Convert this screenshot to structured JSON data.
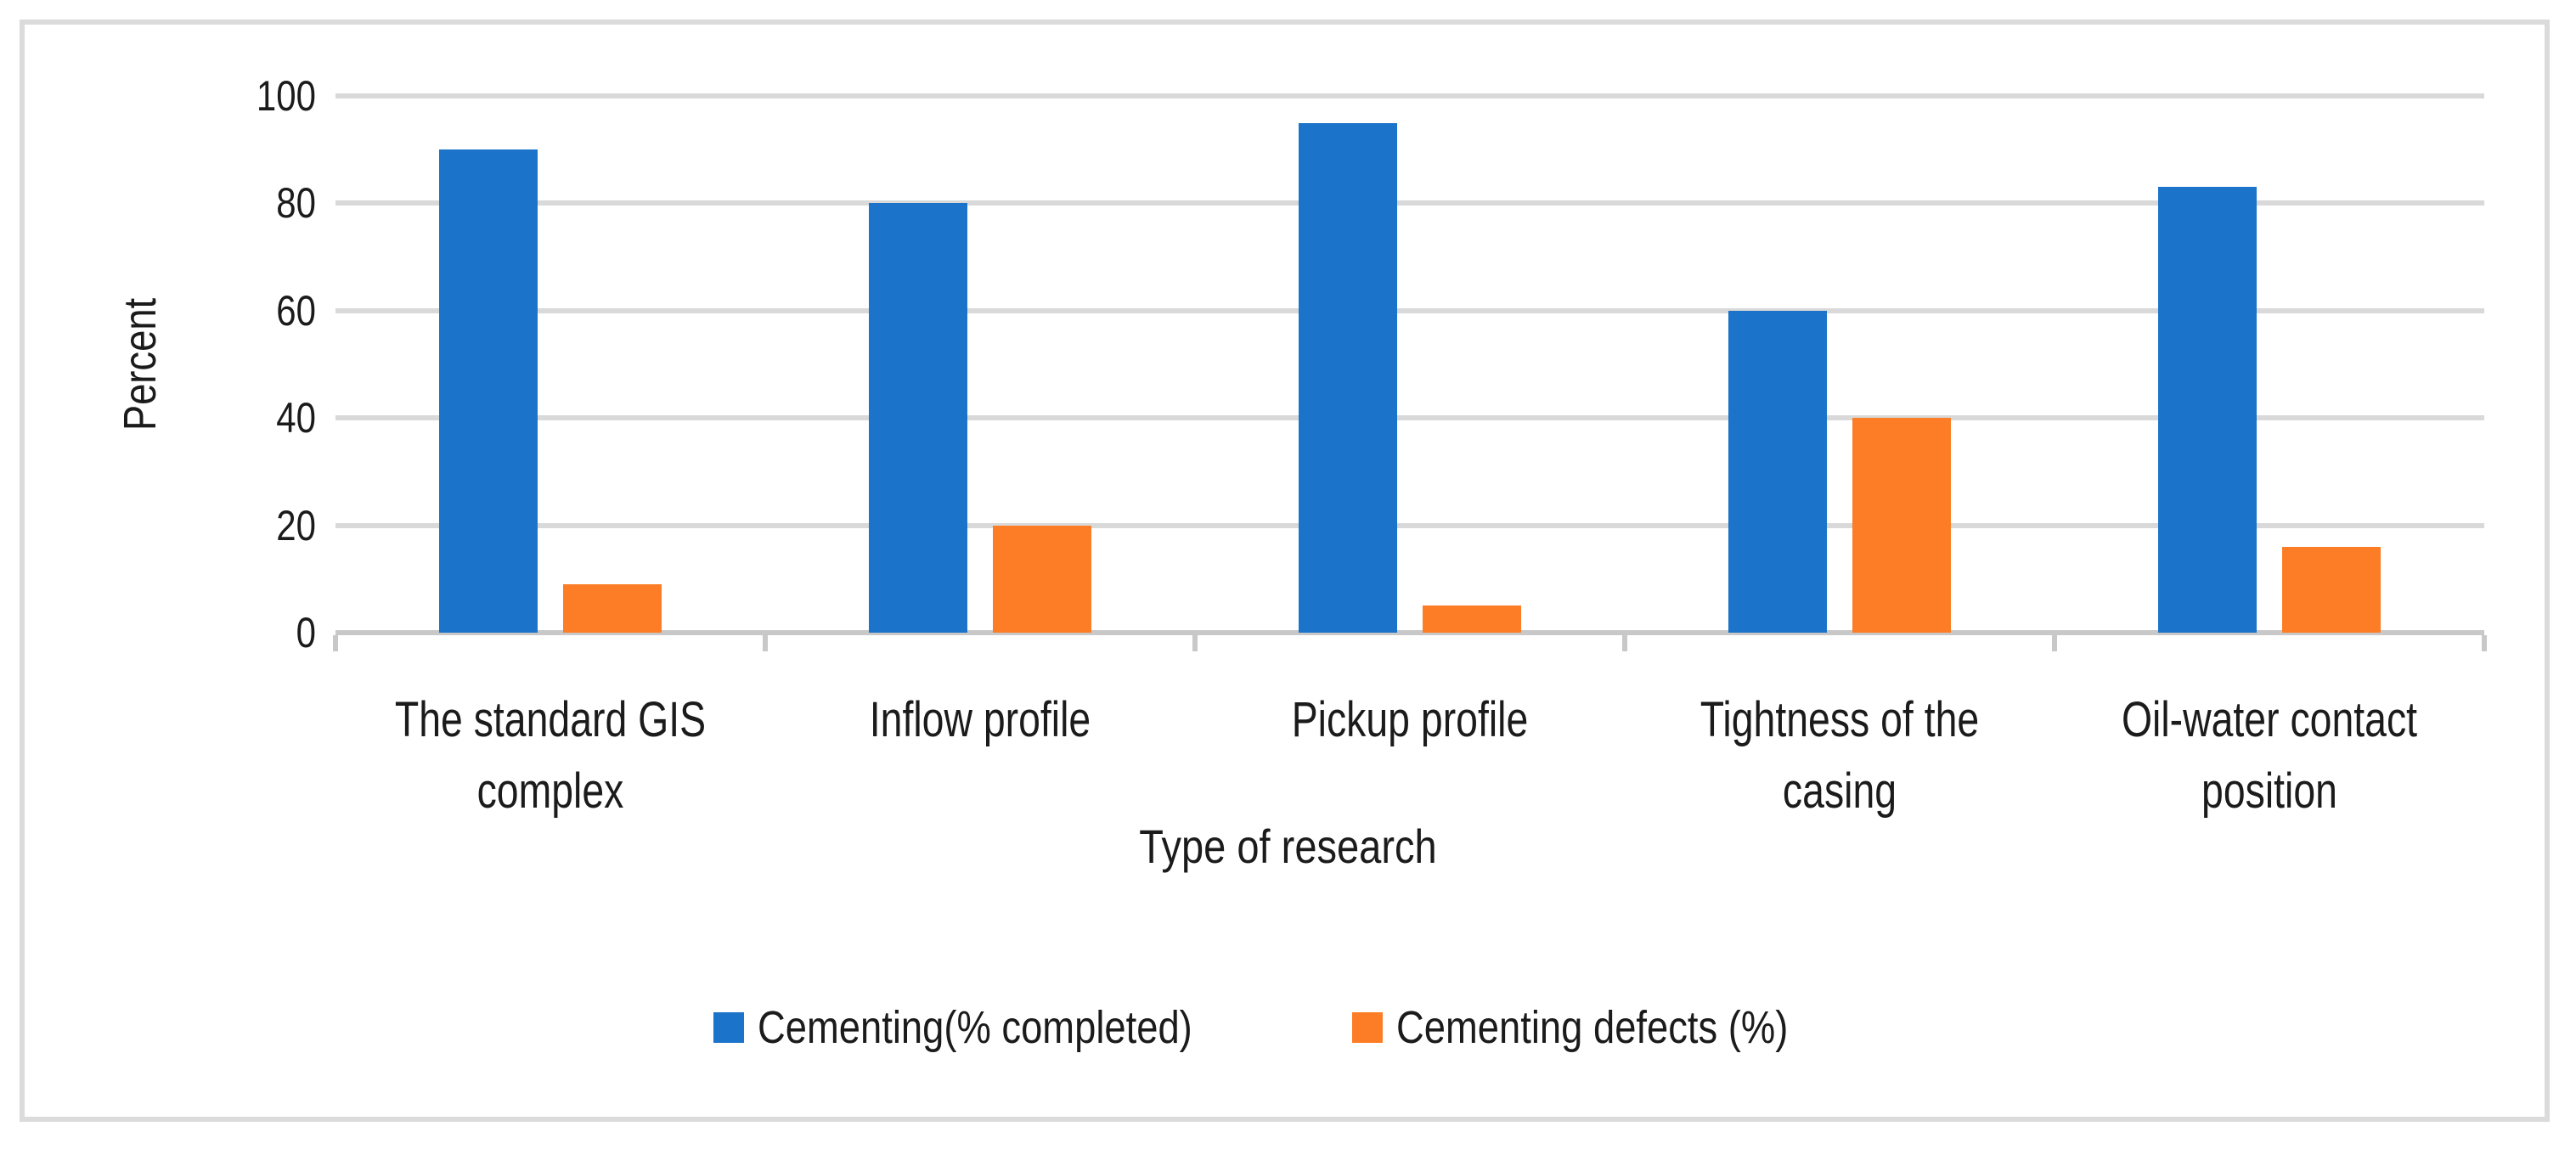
{
  "chart_data": {
    "type": "bar",
    "title": "",
    "categories": [
      "The standard GIS complex",
      "Inflow profile",
      "Pickup profile",
      "Tightness of the casing",
      "Oil-water contact position"
    ],
    "series": [
      {
        "name": "Cementing(% completed)",
        "color": "#1b74c9",
        "values": [
          90,
          80,
          95,
          60,
          83
        ]
      },
      {
        "name": "Cementing defects (%)",
        "color": "#fc7d26",
        "values": [
          9,
          20,
          5,
          40,
          16
        ]
      }
    ],
    "xlabel": "Type of research",
    "ylabel": "Percent",
    "ylim": [
      0,
      100
    ],
    "yticks": [
      0,
      20,
      40,
      60,
      80,
      100
    ],
    "grid": true,
    "legend_position": "bottom",
    "colors": {
      "gridline": "#d9d9d9",
      "axis_line": "#c8c8c8",
      "frame_border": "#dbdbdb",
      "text": "#1b1b1b",
      "background": "#ffffff"
    }
  }
}
